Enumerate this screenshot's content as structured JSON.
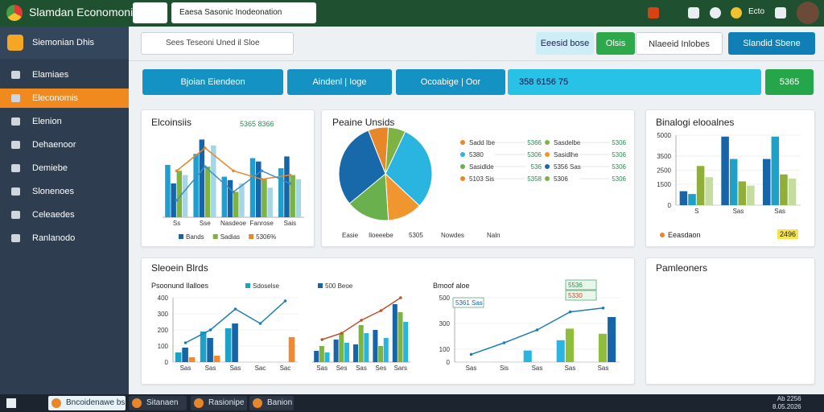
{
  "topbar": {
    "title": "Slamdan Economoni",
    "select": "Eaesa Sasonic Inodeonation",
    "user": "Ecto"
  },
  "sidebar": {
    "header": "Siemonian Dhis",
    "items": [
      "Elamiaes",
      "Eleconomis",
      "Elenion",
      "Dehaenoor",
      "Demiebe",
      "Slonenoes",
      "Celeaedes",
      "Ranlanodo"
    ]
  },
  "search": "Sees Teseoni Uned il Sloe",
  "header_buttons": [
    "Eeesid bose",
    "Olsis",
    "Nlaeeid Inlobes",
    "Slandid Sbene"
  ],
  "toolbar": [
    "Bjoian Eiendeon",
    "Aindenl | Ioge",
    "Ocoabige | Oor",
    "358 6156 75",
    "5365"
  ],
  "cards": {
    "economics": {
      "title": "Elcoinsiis",
      "tag": "5365 8366",
      "chart": {
        "type": "bar",
        "categories": [
          "Ss",
          "Sse",
          "Nasdeoe",
          "Fanrose",
          "Sais"
        ],
        "ylim": [
          0,
          100
        ],
        "series": [
          {
            "color": "#1e9fd0",
            "values": [
              62,
              75,
              48,
              70,
              58
            ]
          },
          {
            "name": "Bands",
            "color": "#1565a8",
            "values": [
              40,
              92,
              44,
              66,
              72
            ]
          },
          {
            "name": "Sadias",
            "color": "#7cb342",
            "values": [
              55,
              60,
              30,
              45,
              50
            ]
          },
          {
            "color": "#a5d6e8",
            "values": [
              50,
              85,
              40,
              35,
              45
            ]
          },
          {
            "name": "5306%",
            "color": "#e8872a",
            "type": "line",
            "values": [
              55,
              82,
              55,
              45,
              50
            ]
          },
          {
            "color": "#3a8fc8",
            "type": "line",
            "values": [
              20,
              60,
              30,
              55,
              40
            ]
          }
        ]
      }
    },
    "pie": {
      "title": "Peaine Unsids",
      "chart": {
        "type": "pie",
        "values": [
          7,
          6,
          30,
          12,
          15,
          30
        ],
        "colors": [
          "#e8872a",
          "#7cb342",
          "#2ab4e0",
          "#f0962e",
          "#6ab04c",
          "#1769aa"
        ]
      },
      "legend": [
        [
          "Sadd Ibe",
          "5366"
        ],
        [
          "Sasdelbe",
          "5306"
        ],
        [
          "5380",
          "5306"
        ],
        [
          "Sasidlhe",
          "5306"
        ],
        [
          "Sasidlde",
          "536"
        ],
        [
          "5356 Sas",
          "5306"
        ],
        [
          "5103 Sis",
          "5358"
        ],
        [
          "5306",
          "5306"
        ]
      ],
      "bottom": [
        "Easie",
        "Iloeeebe",
        "5305",
        "Nowdes",
        "Naln"
      ]
    },
    "balance": {
      "title": "Binalogi elooalnes",
      "legend": "Eeasdaon",
      "badge": "2496",
      "chart": {
        "type": "bar",
        "categories": [
          "S",
          "Sas",
          "Sas"
        ],
        "ylim": [
          0,
          5000
        ],
        "yticks": [
          0,
          1500,
          2500,
          3500,
          5000
        ],
        "series": [
          {
            "color": "#1565a8",
            "values": [
              1000,
              4900,
              3300
            ]
          },
          {
            "color": "#1da1c9",
            "values": [
              800,
              3300,
              4900
            ]
          },
          {
            "color": "#8fae3a",
            "values": [
              2800,
              1700,
              2200
            ]
          },
          {
            "color": "#c5dca0",
            "values": [
              2000,
              1400,
              1900
            ]
          }
        ]
      }
    },
    "boards": {
      "title": "Sleoein Blrds",
      "charts": [
        {
          "type": "bar",
          "title": "Psoonund Ilalloes",
          "categories": [
            "Sas",
            "Sas",
            "Sas",
            "Sac",
            "Sac"
          ],
          "ylim": [
            0,
            400
          ],
          "yticks": [
            0,
            100,
            200,
            300,
            400
          ],
          "series": [
            {
              "name": "Sdoselse",
              "color": "#1da1c9",
              "values": [
                60,
                190,
                210,
                0,
                0
              ]
            },
            {
              "color": "#1565a8",
              "values": [
                90,
                150,
                240,
                0,
                0
              ]
            },
            {
              "color": "#f08a30",
              "values": [
                30,
                40,
                0,
                0,
                155
              ]
            },
            {
              "color": "#1c7fb0",
              "type": "line",
              "values": [
                120,
                200,
                330,
                240,
                380
              ]
            }
          ]
        },
        {
          "type": "bar",
          "categories": [
            "Sas",
            "Ses",
            "Sas",
            "Ses",
            "Sars"
          ],
          "ylim": [
            0,
            400
          ],
          "series": [
            {
              "name": "500 Beoe",
              "color": "#1565a8",
              "values": [
                70,
                140,
                110,
                200,
                360
              ]
            },
            {
              "color": "#7cb342",
              "values": [
                100,
                180,
                230,
                100,
                310
              ]
            },
            {
              "color": "#2ab4e0",
              "values": [
                60,
                120,
                180,
                150,
                250
              ]
            },
            {
              "color": "#c0502a",
              "type": "line",
              "values": [
                140,
                180,
                260,
                320,
                400
              ]
            }
          ]
        },
        {
          "type": "bar",
          "title": "Bmoof aloe",
          "categories": [
            "Sas",
            "Sis",
            "Sas",
            "Sas",
            "Sas"
          ],
          "ylim": [
            0,
            500
          ],
          "yticks": [
            0,
            100,
            300,
            500
          ],
          "notes": [
            "5361 Sas",
            "5536",
            "5330"
          ],
          "series": [
            {
              "color": "#2ab4e0",
              "values": [
                0,
                0,
                90,
                170,
                0
              ]
            },
            {
              "color": "#8fbf3a",
              "values": [
                0,
                0,
                0,
                260,
                220
              ]
            },
            {
              "color": "#1565a8",
              "values": [
                0,
                0,
                0,
                0,
                350
              ]
            },
            {
              "color": "#1c7fb0",
              "type": "line",
              "values": [
                60,
                150,
                250,
                390,
                420
              ]
            }
          ]
        }
      ]
    },
    "partners": {
      "title": "Pamleoners"
    }
  },
  "taskbar": {
    "items": [
      "Bncoidenawe bs",
      "Sitanaen",
      "Rasionipe",
      "Banion"
    ],
    "clock": [
      "Ab 2256",
      "8.05.2026"
    ]
  }
}
